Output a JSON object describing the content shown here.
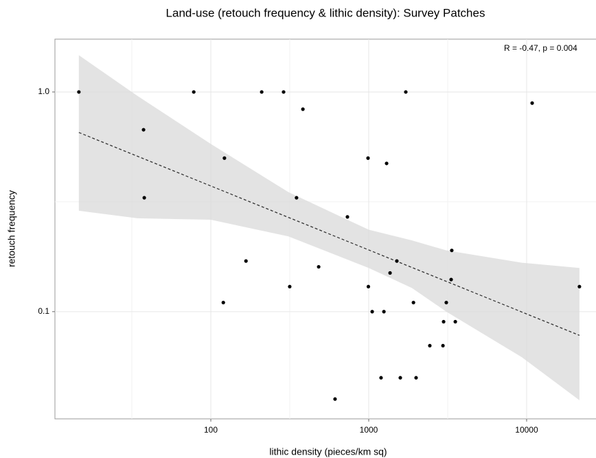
{
  "chart_data": {
    "type": "scatter",
    "title": "Land-use (retouch frequency & lithic density): Survey Patches",
    "x_label": "lithic density (pieces/km sq)",
    "y_label": "retouch frequency",
    "annotation": "R = -0.47, p = 0.004",
    "x_log": true,
    "y_log": true,
    "grid": true,
    "minor_grid": true,
    "xlim": [
      10.3,
      27500
    ],
    "xticks": [
      100,
      1000,
      10000
    ],
    "ylim": [
      0.0325,
      1.74
    ],
    "yticks": [
      0.1,
      {
        "value": 1,
        "label": "1.0"
      }
    ],
    "point_color": "#000000",
    "x": [
      14.6,
      78,
      210,
      289,
      1717,
      383,
      10840,
      37.5,
      37.9,
      122,
      990,
      1298,
      349,
      733,
      167,
      482,
      1507,
      3357,
      1365,
      3327,
      316,
      995,
      21600,
      120,
      1920,
      3100,
      1052,
      1248,
      2980,
      3535,
      2437,
      2952,
      1197,
      1585,
      1995,
      612
    ],
    "y": [
      1.0,
      1.0,
      1.0,
      1.0,
      1.0,
      0.835,
      0.89,
      0.673,
      0.33,
      0.5,
      0.5,
      0.473,
      0.33,
      0.27,
      0.17,
      0.16,
      0.17,
      0.19,
      0.15,
      0.14,
      0.13,
      0.13,
      0.13,
      0.11,
      0.11,
      0.11,
      0.1,
      0.1,
      0.09,
      0.09,
      0.07,
      0.07,
      0.05,
      0.05,
      0.05,
      0.04
    ],
    "fit": {
      "color": "#333333",
      "x": [
        14.6,
        21600
      ],
      "y": [
        0.654,
        0.078
      ]
    },
    "band": {
      "color": "#d9d9d9",
      "x": [
        14.6,
        34.3,
        100,
        310,
        1000,
        1880,
        3100,
        9330,
        21600
      ],
      "upper": [
        1.47,
        0.96,
        0.58,
        0.35,
        0.236,
        0.211,
        0.19,
        0.167,
        0.158
      ],
      "lower": [
        0.288,
        0.266,
        0.262,
        0.22,
        0.158,
        0.128,
        0.1,
        0.062,
        0.0395
      ]
    }
  }
}
